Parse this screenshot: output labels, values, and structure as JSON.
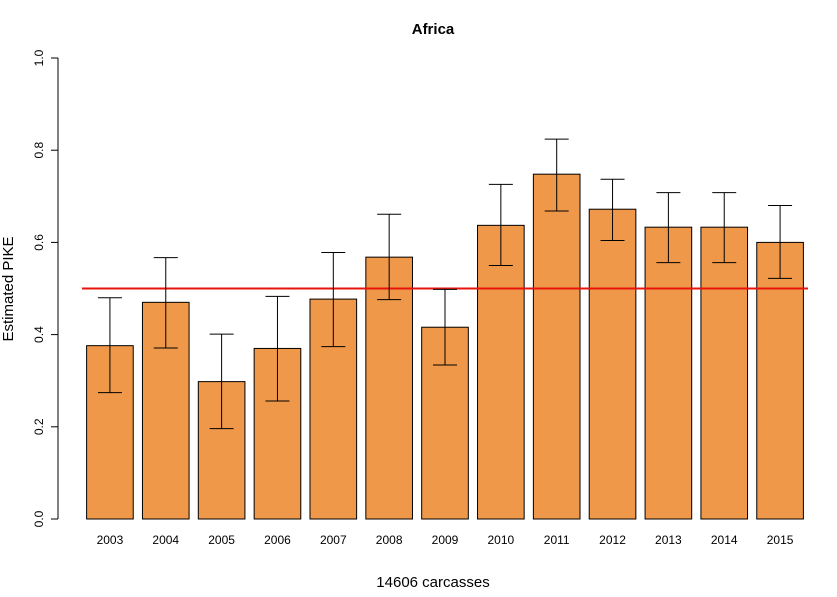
{
  "chart_data": {
    "type": "bar",
    "title": "Africa",
    "xlabel": "14606 carcasses",
    "ylabel": "Estimated PIKE",
    "categories": [
      "2003",
      "2004",
      "2005",
      "2006",
      "2007",
      "2008",
      "2009",
      "2010",
      "2011",
      "2012",
      "2013",
      "2014",
      "2015"
    ],
    "values": [
      0.376,
      0.47,
      0.298,
      0.37,
      0.477,
      0.568,
      0.416,
      0.637,
      0.748,
      0.672,
      0.633,
      0.633,
      0.6
    ],
    "error_lower": [
      0.274,
      0.371,
      0.196,
      0.256,
      0.374,
      0.476,
      0.334,
      0.55,
      0.668,
      0.604,
      0.556,
      0.556,
      0.522
    ],
    "error_upper": [
      0.48,
      0.567,
      0.401,
      0.483,
      0.578,
      0.661,
      0.498,
      0.726,
      0.824,
      0.737,
      0.708,
      0.708,
      0.68
    ],
    "reference_line": 0.5,
    "ylim": [
      0,
      1
    ],
    "yticks": [
      "0.0",
      "0.2",
      "0.4",
      "0.6",
      "0.8",
      "1.0"
    ],
    "grid": false,
    "colors": {
      "bar_fill": "#F0984A",
      "bar_stroke": "#000000",
      "reference_line": "#E8140C",
      "error_bar": "#000000"
    }
  }
}
